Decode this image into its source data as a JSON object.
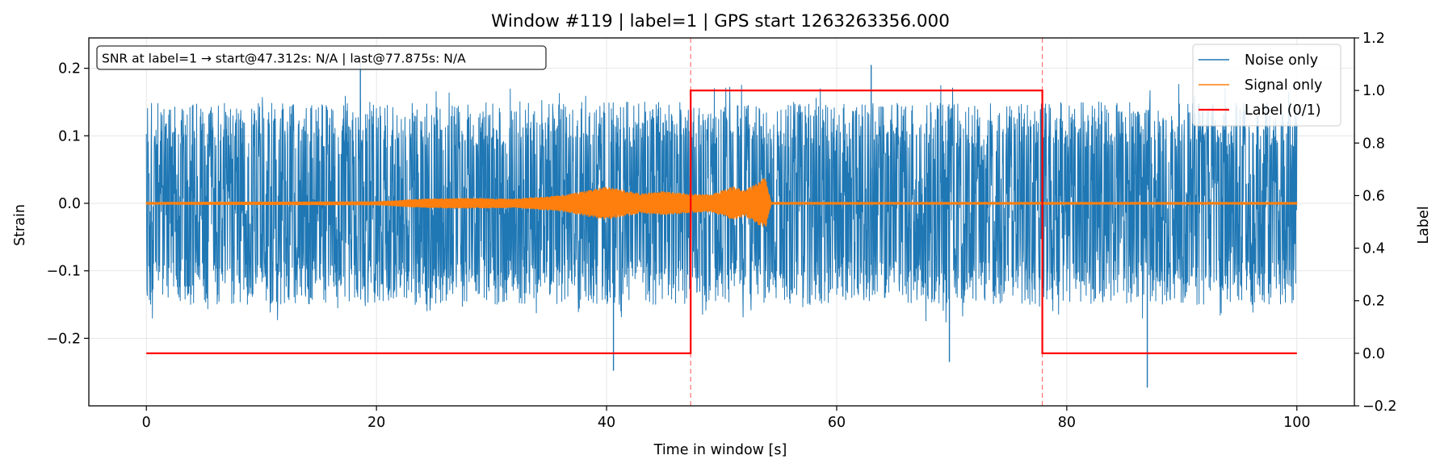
{
  "chart_data": {
    "type": "line",
    "title": "Window #119  |  label=1  |  GPS start 1263263356.000",
    "xlabel": "Time in window [s]",
    "ylabel": "Strain",
    "ylabel_right": "Label",
    "xlim": [
      -5,
      105
    ],
    "ylim": [
      -0.3,
      0.245
    ],
    "ylim_right": [
      -0.2,
      1.2
    ],
    "xticks": [
      0,
      20,
      40,
      60,
      80,
      100
    ],
    "yticks": [
      -0.2,
      -0.1,
      0.0,
      0.1,
      0.2
    ],
    "yticks_right": [
      -0.2,
      0.0,
      0.2,
      0.4,
      0.6,
      0.8,
      1.0,
      1.2
    ],
    "xtick_labels": [
      "0",
      "20",
      "40",
      "60",
      "80",
      "100"
    ],
    "ytick_labels": [
      "−0.2",
      "−0.1",
      "0.0",
      "0.1",
      "0.2"
    ],
    "ytick_labels_right": [
      "−0.2",
      "0.0",
      "0.2",
      "0.4",
      "0.6",
      "0.8",
      "1.0",
      "1.2"
    ],
    "grid": true,
    "legend_position": "top-right",
    "annotation": "SNR at label=1 → start@47.312s: N/A | last@77.875s: N/A",
    "vlines": [
      47.312,
      77.875
    ],
    "series": [
      {
        "name": "Noise only",
        "color": "#1f77b4",
        "axis": "left",
        "kind": "noise",
        "x_range": [
          0,
          100
        ],
        "envelope": 0.15,
        "extremes": [
          {
            "x": 18.6,
            "y": 0.21
          },
          {
            "x": 40.6,
            "y": -0.248
          },
          {
            "x": 69.8,
            "y": -0.235
          },
          {
            "x": 87.0,
            "y": -0.273
          },
          {
            "x": 63.0,
            "y": 0.205
          }
        ]
      },
      {
        "name": "Signal only",
        "color": "#ff7f0e",
        "axis": "left",
        "kind": "chirp",
        "x_range": [
          0,
          100
        ],
        "envelope_points": [
          [
            0,
            0.002
          ],
          [
            20,
            0.003
          ],
          [
            24,
            0.007
          ],
          [
            28,
            0.008
          ],
          [
            32,
            0.007
          ],
          [
            36,
            0.012
          ],
          [
            40,
            0.025
          ],
          [
            43,
            0.015
          ],
          [
            45,
            0.018
          ],
          [
            47,
            0.015
          ],
          [
            49,
            0.013
          ],
          [
            51,
            0.025
          ],
          [
            52,
            0.02
          ],
          [
            53,
            0.03
          ],
          [
            53.8,
            0.04
          ],
          [
            54.3,
            0.002
          ],
          [
            100,
            0.002
          ]
        ]
      },
      {
        "name": "Label (0/1)",
        "color": "#ff0000",
        "axis": "right",
        "kind": "step",
        "x": [
          0,
          47.312,
          47.312,
          77.875,
          77.875,
          100
        ],
        "y": [
          0,
          0,
          1,
          1,
          0,
          0
        ]
      }
    ]
  }
}
